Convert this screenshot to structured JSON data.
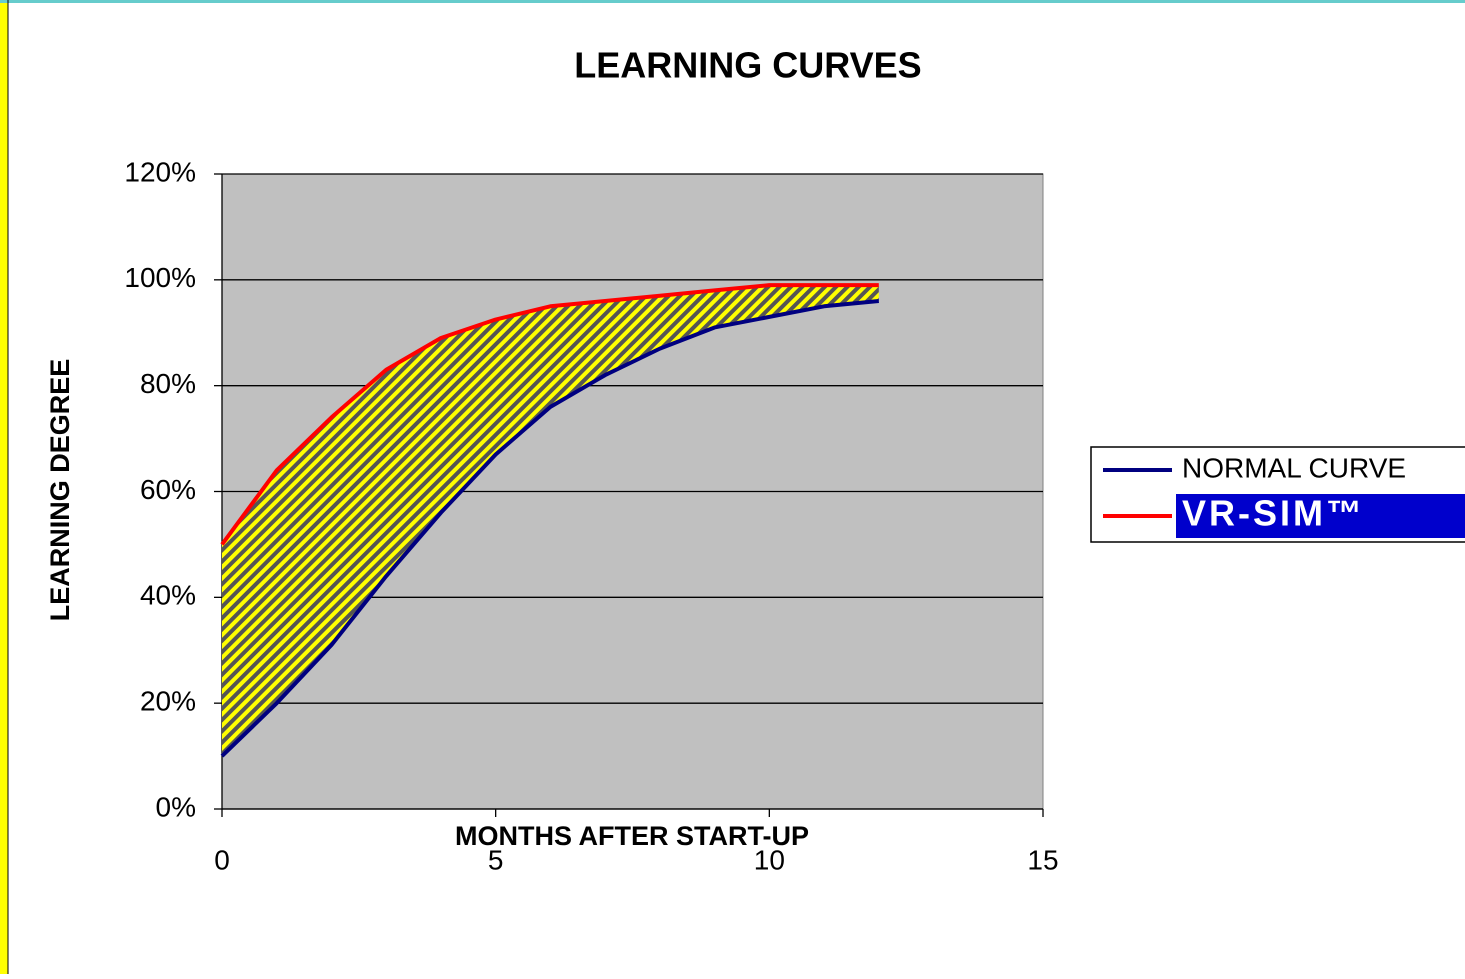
{
  "chart_data": {
    "type": "line",
    "title": "LEARNING CURVES",
    "x_label": "MONTHS AFTER START-UP",
    "y_label": "LEARNING DEGREE",
    "x": [
      0,
      1,
      2,
      3,
      4,
      5,
      6,
      7,
      8,
      9,
      10,
      11,
      12
    ],
    "series": [
      {
        "name": "NORMAL CURVE",
        "color": "#000080",
        "values": [
          10,
          20,
          31,
          44,
          56,
          67,
          76,
          82,
          87,
          91,
          93,
          95,
          96
        ]
      },
      {
        "name": "VR-SIM™",
        "color": "#ff0000",
        "values": [
          50,
          64,
          74,
          83,
          89,
          92.5,
          95,
          96,
          97,
          98,
          99,
          99,
          99
        ]
      }
    ],
    "xlim": [
      0,
      15
    ],
    "xticks": [
      0,
      5,
      10,
      15
    ],
    "ylim": [
      0,
      120
    ],
    "yticks": [
      {
        "value": 0,
        "label": "0%"
      },
      {
        "value": 20,
        "label": "20%"
      },
      {
        "value": 40,
        "label": "40%"
      },
      {
        "value": 60,
        "label": "60%"
      },
      {
        "value": 80,
        "label": "80%"
      },
      {
        "value": 100,
        "label": "100%"
      },
      {
        "value": 120,
        "label": "120%"
      }
    ],
    "grid": true,
    "legend": "right"
  }
}
